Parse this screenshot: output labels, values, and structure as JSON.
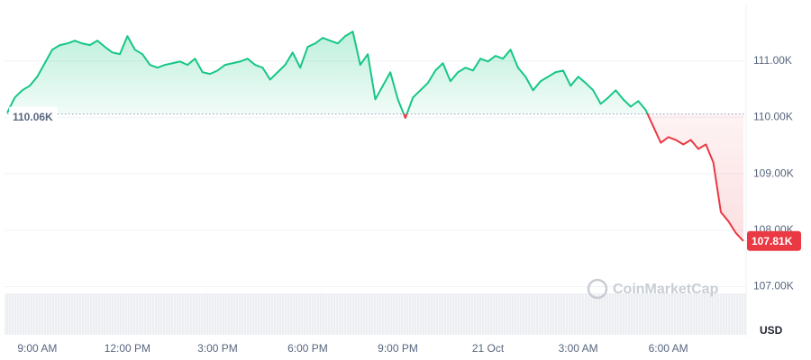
{
  "chart_data": {
    "type": "line",
    "currency": "USD",
    "watermark": "CoinMarketCap",
    "up_color": "#16c784",
    "down_color": "#ea3943",
    "baseline": {
      "value": 110060,
      "label": "110.06K"
    },
    "last_label": "107.81K",
    "grid": true,
    "ylim": [
      106100,
      112000
    ],
    "yticks": [
      {
        "value": 107000,
        "label": "107.00K"
      },
      {
        "value": 108000,
        "label": "108.00K"
      },
      {
        "value": 109000,
        "label": "109.00K"
      },
      {
        "value": 110000,
        "label": "110.00K"
      },
      {
        "value": 111000,
        "label": "111.00K"
      }
    ],
    "categories": [
      null,
      null,
      null,
      null,
      "9:00 AM",
      null,
      null,
      null,
      null,
      null,
      null,
      null,
      null,
      null,
      null,
      null,
      "12:00 PM",
      null,
      null,
      null,
      null,
      null,
      null,
      null,
      null,
      null,
      null,
      null,
      "3:00 PM",
      null,
      null,
      null,
      null,
      null,
      null,
      null,
      null,
      null,
      null,
      null,
      "6:00 PM",
      null,
      null,
      null,
      null,
      null,
      null,
      null,
      null,
      null,
      null,
      null,
      "9:00 PM",
      null,
      null,
      null,
      null,
      null,
      null,
      null,
      null,
      null,
      null,
      null,
      "21 Oct",
      null,
      null,
      null,
      null,
      null,
      null,
      null,
      null,
      null,
      null,
      null,
      "3:00 AM",
      null,
      null,
      null,
      null,
      null,
      null,
      null,
      null,
      null,
      null,
      null,
      "6:00 AM",
      null,
      null,
      null,
      null,
      null,
      null,
      null,
      null,
      null,
      null
    ],
    "values": [
      110080,
      110350,
      110480,
      110560,
      110720,
      110960,
      111200,
      111280,
      111310,
      111360,
      111310,
      111280,
      111360,
      111250,
      111150,
      111120,
      111440,
      111200,
      111120,
      110930,
      110880,
      110930,
      110960,
      110990,
      110930,
      111040,
      110800,
      110770,
      110830,
      110930,
      110960,
      110990,
      111040,
      110930,
      110880,
      110670,
      110800,
      110930,
      111150,
      110880,
      111250,
      111310,
      111410,
      111360,
      111310,
      111440,
      111520,
      110930,
      111120,
      110320,
      110560,
      110800,
      110320,
      109990,
      110350,
      110480,
      110610,
      110830,
      110960,
      110640,
      110800,
      110880,
      110830,
      111040,
      110990,
      111090,
      111040,
      111200,
      110880,
      110720,
      110480,
      110640,
      110720,
      110800,
      110830,
      110560,
      110720,
      110610,
      110480,
      110240,
      110350,
      110480,
      110320,
      110190,
      110290,
      110130,
      109840,
      109550,
      109650,
      109600,
      109520,
      109600,
      109440,
      109520,
      109200,
      108320,
      108160,
      107950,
      107810
    ]
  }
}
